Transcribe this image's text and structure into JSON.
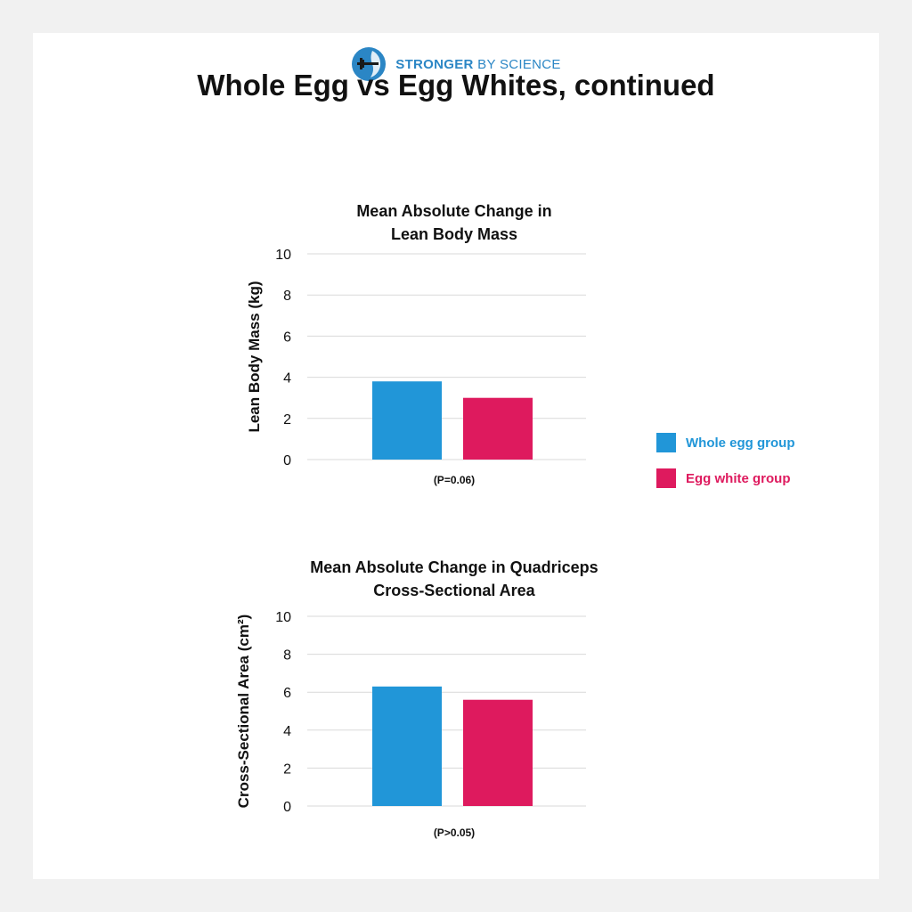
{
  "brand": {
    "name_bold": "STRONGER",
    "name_rest": "BY SCIENCE"
  },
  "page_title": "Whole Egg vs Egg Whites, continued",
  "colors": {
    "whole_egg": "#2196d8",
    "egg_white": "#de1a5e"
  },
  "legend": [
    {
      "label": "Whole egg group",
      "color": "#2196d8"
    },
    {
      "label": "Egg white group",
      "color": "#de1a5e"
    }
  ],
  "chart_data": [
    {
      "type": "bar",
      "title": [
        "Mean Absolute Change in",
        "Lean Body Mass"
      ],
      "ylabel": "Lean Body Mass (kg)",
      "xlabel": "",
      "ylim": [
        0,
        10
      ],
      "yticks": [
        0,
        2,
        4,
        6,
        8,
        10
      ],
      "grid": true,
      "categories": [
        ""
      ],
      "series": [
        {
          "name": "Whole egg group",
          "values": [
            3.8
          ]
        },
        {
          "name": "Egg white group",
          "values": [
            3.0
          ]
        }
      ],
      "annotation": "(P=0.06)"
    },
    {
      "type": "bar",
      "title": [
        "Mean Absolute Change in Quadriceps",
        "Cross-Sectional Area"
      ],
      "ylabel": "Cross-Sectional Area (cm²)",
      "xlabel": "",
      "ylim": [
        0,
        10
      ],
      "yticks": [
        0,
        2,
        4,
        6,
        8,
        10
      ],
      "grid": true,
      "categories": [
        ""
      ],
      "series": [
        {
          "name": "Whole egg group",
          "values": [
            6.3
          ]
        },
        {
          "name": "Egg white group",
          "values": [
            5.6
          ]
        }
      ],
      "annotation": "(P>0.05)"
    }
  ]
}
